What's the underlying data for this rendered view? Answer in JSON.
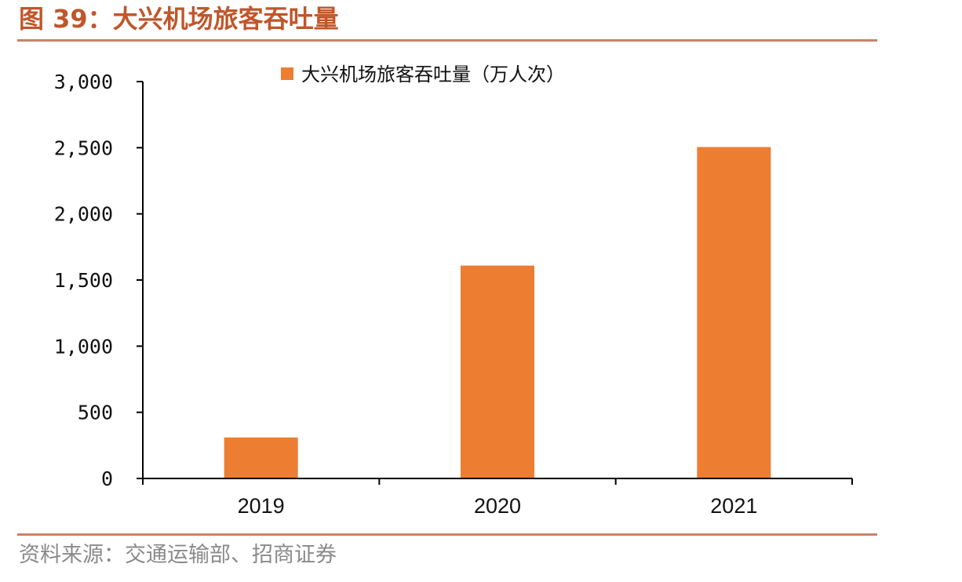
{
  "figure": {
    "title": "图 39：大兴机场旅客吞吐量",
    "source": "资料来源：交通运输部、招商证券"
  },
  "colors": {
    "bar": "#ED7D31",
    "title": "#C0562B",
    "rule": "#C8836A",
    "axis": "#000000"
  },
  "chart_data": {
    "type": "bar",
    "categories": [
      "2019",
      "2020",
      "2021"
    ],
    "series": [
      {
        "name": "大兴机场旅客吞吐量（万人次）",
        "values": [
          310,
          1609,
          2505
        ]
      }
    ],
    "yticks": [
      "0",
      "500",
      "1,000",
      "1,500",
      "2,000",
      "2,500",
      "3,000"
    ],
    "ylim": [
      0,
      3000
    ],
    "title": "",
    "xlabel": "",
    "ylabel": "",
    "legend_position": "top",
    "grid": false
  }
}
